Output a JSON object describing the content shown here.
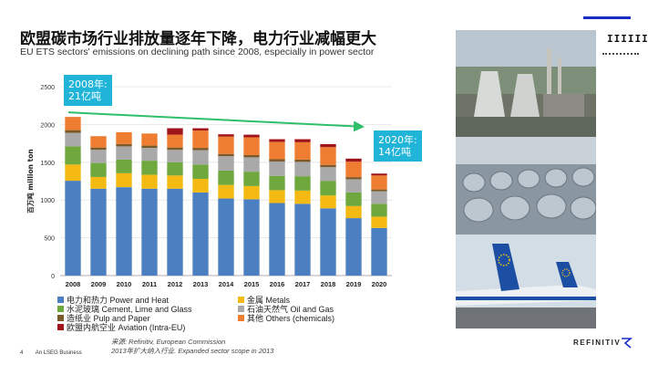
{
  "title": "欧盟碳市场行业排放量逐年下降，电力行业减幅更大",
  "subtitle": "EU ETS sectors' emissions on declining path since 2008, especially in power sector",
  "callouts": {
    "left_line1": "2008年:",
    "left_line2": "21亿吨",
    "right_line1": "2020年:",
    "right_line2": "14亿吨"
  },
  "photos": [
    "power-plant-photo",
    "steel-coils-photo",
    "aircraft-photo"
  ],
  "decor": {
    "barcode": "IIIIIII"
  },
  "footer": {
    "page_number": "4",
    "company": "An LSEG Business",
    "source_line1": "来源: Refinitiv, European Commission",
    "source_line2": "2013年扩大纳入行业. Expanded sector scope in 2013"
  },
  "brand": "REFINITIV",
  "chart_data": {
    "type": "bar",
    "stacked": true,
    "ylabel": "百万吨 million ton",
    "xlabel": "",
    "ylim": [
      0,
      2500
    ],
    "yticks": [
      0,
      500,
      1000,
      1500,
      2000,
      2500
    ],
    "categories": [
      "2008",
      "2009",
      "2010",
      "2011",
      "2012",
      "2013",
      "2014",
      "2015",
      "2016",
      "2017",
      "2018",
      "2019",
      "2020"
    ],
    "series": [
      {
        "name": "电力和热力 Power and Heat",
        "color": "#4a7fc1",
        "values": [
          1255,
          1150,
          1170,
          1150,
          1150,
          1100,
          1020,
          1010,
          960,
          950,
          890,
          760,
          630
        ]
      },
      {
        "name": "金属 Metals",
        "color": "#f5b913",
        "values": [
          215,
          155,
          185,
          185,
          175,
          180,
          180,
          175,
          170,
          175,
          170,
          160,
          150
        ]
      },
      {
        "name": "水泥玻璃 Cement, Lime and Glass",
        "color": "#6fa83d",
        "values": [
          240,
          185,
          180,
          185,
          175,
          190,
          190,
          190,
          190,
          190,
          190,
          180,
          170
        ]
      },
      {
        "name": "石油天然气 Oil and Gas",
        "color": "#a9a9a9",
        "values": [
          180,
          175,
          175,
          170,
          165,
          190,
          190,
          190,
          190,
          190,
          185,
          175,
          165
        ]
      },
      {
        "name": "造纸业 Pulp and Paper",
        "color": "#7b5a2a",
        "values": [
          35,
          30,
          32,
          30,
          30,
          30,
          30,
          30,
          30,
          30,
          30,
          28,
          25
        ]
      },
      {
        "name": "其他 Others (chemicals)",
        "color": "#ee7d31",
        "values": [
          175,
          150,
          155,
          160,
          170,
          230,
          230,
          235,
          230,
          230,
          235,
          205,
          185
        ]
      },
      {
        "name": "欧盟内航空业 Aviation (Intra-EU)",
        "color": "#a0151b",
        "values": [
          0,
          0,
          0,
          0,
          85,
          30,
          30,
          35,
          35,
          40,
          40,
          40,
          25
        ]
      }
    ]
  }
}
